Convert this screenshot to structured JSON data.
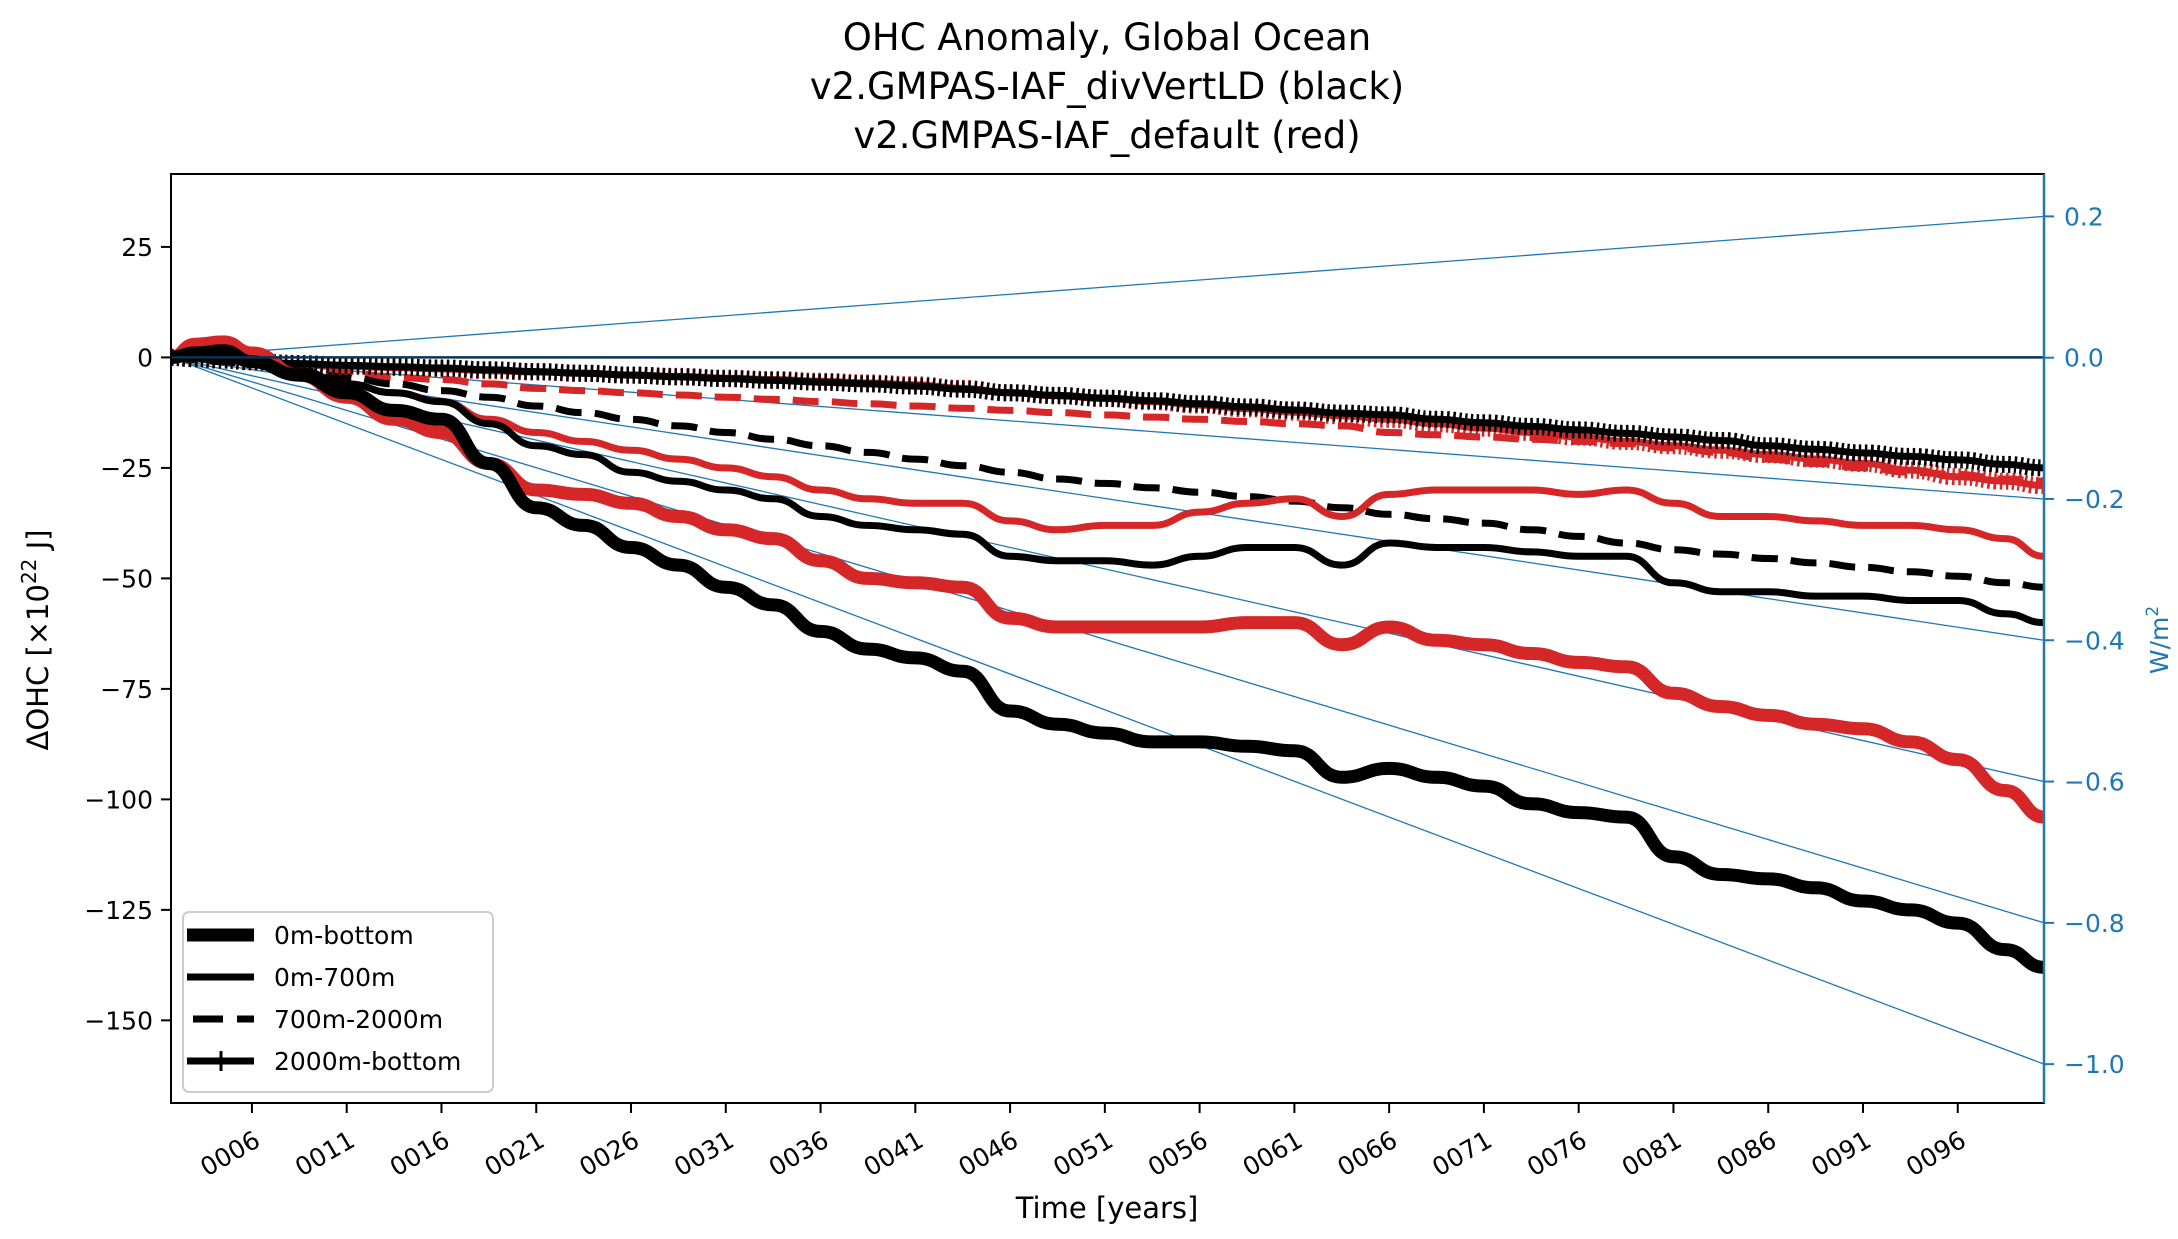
{
  "chart_data": {
    "type": "line",
    "title": [
      "OHC Anomaly, Global Ocean",
      "v2.GMPAS-IAF_divVertLD (black)",
      "v2.GMPAS-IAF_default (red)"
    ],
    "xlabel": "Time [years]",
    "ylabel": "ΔOHC [×10²² J]",
    "ylabel_parts": {
      "base": "ΔOHC [×10",
      "sup": "22",
      "tail": " J]"
    },
    "ylabel_right": "W/m²",
    "ylabel_right_parts": {
      "base": "W/m",
      "sup": "2"
    },
    "xlim": [
      1.73,
      100.55
    ],
    "ylim": [
      -168.7,
      41.5
    ],
    "ylim_right": [
      -1.055,
      0.26
    ],
    "grid": false,
    "x_ticks": [
      6,
      11,
      16,
      21,
      26,
      31,
      36,
      41,
      46,
      51,
      56,
      61,
      66,
      71,
      76,
      81,
      86,
      91,
      96
    ],
    "x_tick_labels": [
      "0006",
      "0011",
      "0016",
      "0021",
      "0026",
      "0031",
      "0036",
      "0041",
      "0046",
      "0051",
      "0056",
      "0061",
      "0066",
      "0071",
      "0076",
      "0081",
      "0086",
      "0091",
      "0096"
    ],
    "y_ticks": [
      25,
      0,
      -25,
      -50,
      -75,
      -100,
      -125,
      -150
    ],
    "y_tick_labels": [
      "25",
      "0",
      "−25",
      "−50",
      "−75",
      "−100",
      "−125",
      "−150"
    ],
    "y_ticks_right": [
      0.2,
      0.0,
      -0.2,
      -0.4,
      -0.6,
      -0.8,
      -1.0
    ],
    "y_tick_labels_right": [
      "0.2",
      "0.0",
      "−0.2",
      "−0.4",
      "−0.6",
      "−0.8",
      "−1.0"
    ],
    "legend": {
      "placement": "lower-left",
      "entries": [
        {
          "label": "0m-bottom",
          "style": "thick-solid"
        },
        {
          "label": "0m-700m",
          "style": "solid"
        },
        {
          "label": "700m-2000m",
          "style": "dashed"
        },
        {
          "label": "2000m-bottom",
          "style": "plus-marker"
        }
      ]
    },
    "colors": {
      "run_black": "#000000",
      "run_red": "#d62728",
      "reference": "#1f77b4"
    },
    "x": [
      1.73,
      3,
      4.5,
      6,
      8.5,
      11,
      13.5,
      16,
      18.5,
      21,
      23.5,
      26,
      28.5,
      31,
      33.5,
      36,
      38.5,
      41,
      43.5,
      46,
      48.5,
      51,
      53.5,
      56,
      58.5,
      61,
      63.5,
      66,
      68.5,
      71,
      73.5,
      76,
      78.5,
      81,
      83.5,
      86,
      88.5,
      91,
      93.5,
      96,
      98.5,
      100.55
    ],
    "series": [
      {
        "name": "v2.GMPAS-IAF_default 0m-bottom",
        "run": "red",
        "depth": "0m-bottom",
        "style": "thick-solid",
        "values": [
          0,
          3,
          3.5,
          1,
          -4,
          -9,
          -14,
          -17,
          -24,
          -30,
          -31,
          -33,
          -36,
          -39,
          -41,
          -46,
          -50,
          -51,
          -52,
          -59,
          -61,
          -61,
          -61,
          -61,
          -60,
          -60,
          -65,
          -61,
          -64,
          -65,
          -67,
          -69,
          -70,
          -76,
          -79,
          -81,
          -83,
          -84,
          -87,
          -91,
          -98,
          -104
        ]
      },
      {
        "name": "v2.GMPAS-IAF_divVertLD 0m-bottom",
        "run": "black",
        "depth": "0m-bottom",
        "style": "thick-solid",
        "values": [
          0,
          1,
          1.5,
          -1,
          -4,
          -8,
          -12,
          -14,
          -24,
          -34,
          -38,
          -43,
          -47,
          -52,
          -56,
          -62,
          -66,
          -68,
          -71,
          -80,
          -83,
          -85,
          -87,
          -87,
          -88,
          -89,
          -95,
          -93,
          -95,
          -97,
          -101,
          -103,
          -104,
          -113,
          -117,
          -118,
          -120,
          -123,
          -125,
          -128,
          -134,
          -138
        ]
      },
      {
        "name": "v2.GMPAS-IAF_default 0m-700m",
        "run": "red",
        "depth": "0m-700m",
        "style": "solid",
        "values": [
          0,
          2,
          3,
          0,
          -3,
          -6,
          -8,
          -10,
          -14,
          -17,
          -19,
          -21,
          -23,
          -25,
          -27,
          -30,
          -32,
          -33,
          -33,
          -37,
          -39,
          -38,
          -38,
          -35,
          -33,
          -32,
          -36,
          -31,
          -30,
          -30,
          -30,
          -31,
          -30,
          -33,
          -36,
          -36,
          -37,
          -38,
          -38,
          -39,
          -41,
          -45
        ]
      },
      {
        "name": "v2.GMPAS-IAF_divVertLD 0m-700m",
        "run": "black",
        "depth": "0m-700m",
        "style": "solid",
        "values": [
          0,
          1.5,
          2,
          0,
          -3,
          -6,
          -8,
          -10,
          -15,
          -20,
          -22,
          -26,
          -28,
          -30,
          -32,
          -36,
          -38,
          -39,
          -40,
          -45,
          -46,
          -46,
          -47,
          -45,
          -43,
          -43,
          -47,
          -42,
          -43,
          -43,
          -44,
          -45,
          -45,
          -51,
          -53,
          -53,
          -54,
          -54,
          -55,
          -55,
          -58,
          -60
        ]
      },
      {
        "name": "v2.GMPAS-IAF_default 700m-2000m",
        "run": "red",
        "depth": "700m-2000m",
        "style": "dashed",
        "values": [
          0,
          -0.5,
          -1,
          -1.5,
          -2.5,
          -3.5,
          -4.5,
          -5,
          -6,
          -7,
          -7.5,
          -8,
          -8.5,
          -9,
          -9.5,
          -10,
          -10.5,
          -11,
          -11.5,
          -12,
          -12.5,
          -13,
          -13.5,
          -14,
          -14.5,
          -15,
          -15.5,
          -17,
          -17.5,
          -18,
          -18.5,
          -19,
          -19.5,
          -20.5,
          -21.5,
          -23,
          -24,
          -25,
          -26,
          -26.5,
          -27.5,
          -28
        ]
      },
      {
        "name": "v2.GMPAS-IAF_divVertLD 700m-2000m",
        "run": "black",
        "depth": "700m-2000m",
        "style": "dashed",
        "values": [
          0,
          -0.5,
          -1,
          -1.5,
          -3,
          -4.5,
          -6,
          -7.5,
          -9,
          -11,
          -12.5,
          -14,
          -15.5,
          -17,
          -18.5,
          -20,
          -21.5,
          -23,
          -24.5,
          -26,
          -27.5,
          -28.5,
          -29.5,
          -30.5,
          -31.5,
          -32.5,
          -34,
          -35.5,
          -36.5,
          -37.5,
          -39,
          -40.5,
          -42,
          -43.5,
          -44.5,
          -45.5,
          -46.5,
          -47.5,
          -48.5,
          -49.5,
          -51,
          -52
        ]
      },
      {
        "name": "v2.GMPAS-IAF_default 2000m-bottom",
        "run": "red",
        "depth": "2000m-bottom",
        "style": "plus-marker",
        "values": [
          0,
          -0.3,
          -0.6,
          -1,
          -1.5,
          -2,
          -2.3,
          -2.6,
          -3,
          -3.3,
          -3.6,
          -4,
          -4.3,
          -4.7,
          -5,
          -5.4,
          -5.8,
          -6.2,
          -7,
          -8,
          -8.7,
          -9.3,
          -10,
          -10.8,
          -11.6,
          -12.4,
          -13.2,
          -14,
          -15,
          -16,
          -17,
          -18,
          -19,
          -20,
          -21,
          -22,
          -23,
          -24,
          -25.5,
          -27,
          -28,
          -29
        ]
      },
      {
        "name": "v2.GMPAS-IAF_divVertLD 2000m-bottom",
        "run": "black",
        "depth": "2000m-bottom",
        "style": "plus-marker",
        "values": [
          0,
          -0.3,
          -0.6,
          -1,
          -1.4,
          -1.8,
          -2.1,
          -2.4,
          -2.8,
          -3.2,
          -3.6,
          -4,
          -4.4,
          -4.8,
          -5.2,
          -5.6,
          -6,
          -6.5,
          -7.2,
          -8,
          -8.6,
          -9.2,
          -9.8,
          -10.5,
          -11.2,
          -11.9,
          -12.6,
          -13,
          -14,
          -14.8,
          -15.6,
          -16.4,
          -17.2,
          -18,
          -18.8,
          -20,
          -20.8,
          -21.6,
          -22.4,
          -23.2,
          -24.2,
          -25
        ]
      }
    ],
    "reference_lines": {
      "description": "Blue lines from origin showing constant heating rates, labelled on right axis",
      "rates_W_per_m2": [
        0.2,
        0.0,
        -0.2,
        -0.4,
        -0.6,
        -0.8,
        -1.0
      ]
    }
  }
}
